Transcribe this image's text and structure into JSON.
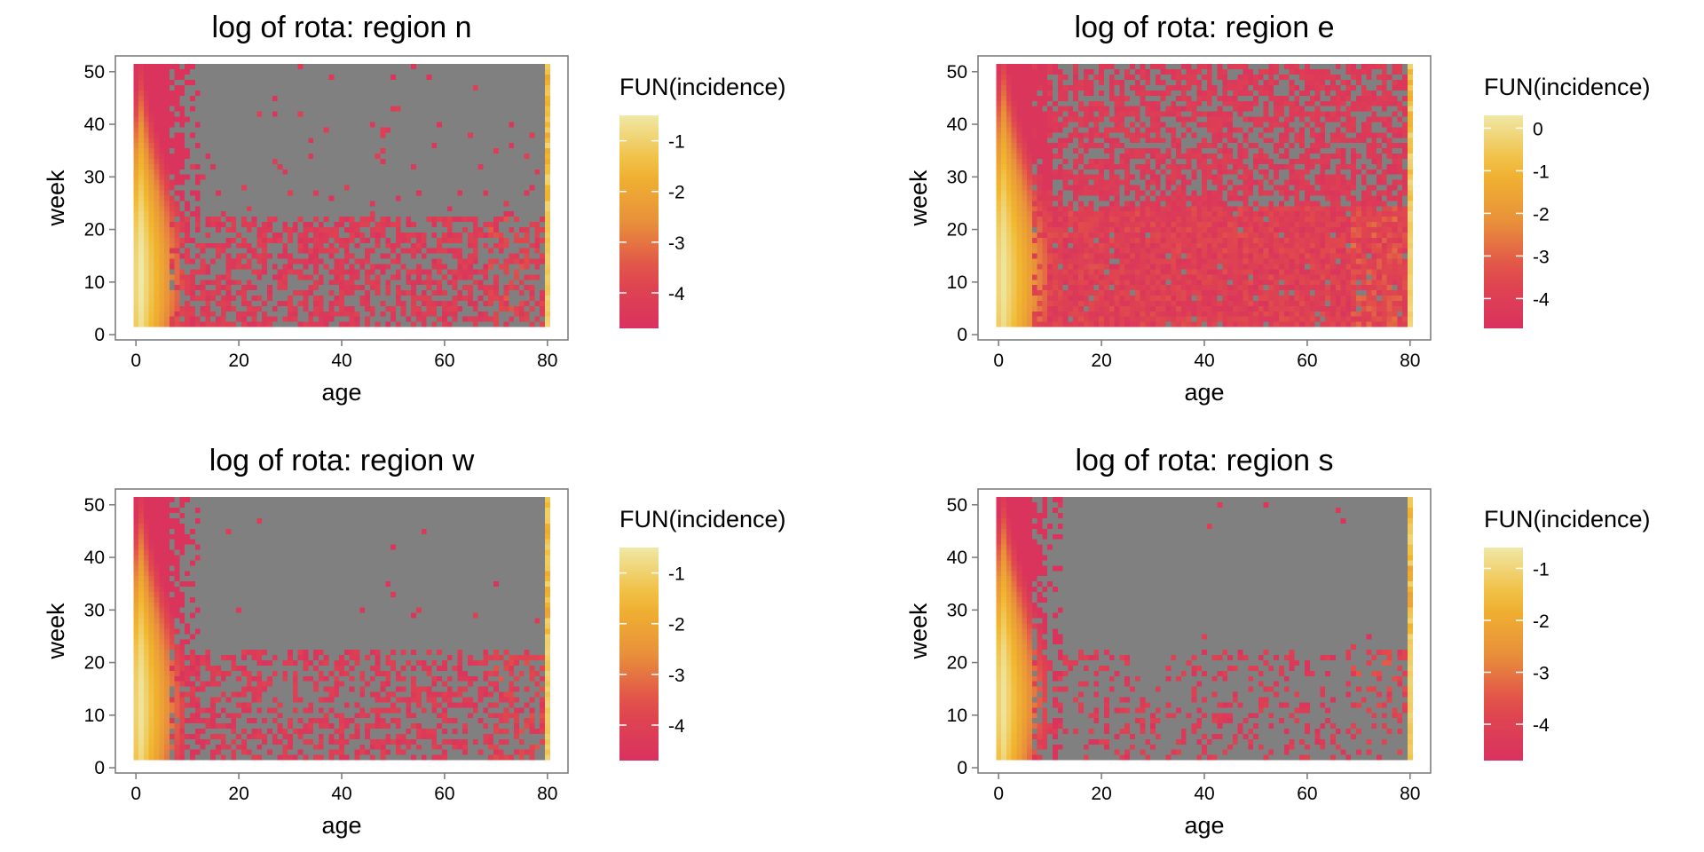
{
  "figure": {
    "background": "#ffffff",
    "na_color": "#808080",
    "palette": [
      "#d9325f",
      "#e0484d",
      "#e8903a",
      "#f1b72f",
      "#efe8a6"
    ]
  },
  "chart_data": [
    {
      "type": "heatmap",
      "title": "log of rota: region n",
      "xlabel": "age",
      "ylabel": "week",
      "xlim": [
        -4,
        84
      ],
      "ylim": [
        -1,
        53
      ],
      "xticks": [
        0,
        20,
        40,
        60,
        80
      ],
      "yticks": [
        0,
        10,
        20,
        30,
        40,
        50
      ],
      "x_range": [
        0,
        80
      ],
      "y_range": [
        2,
        51
      ],
      "legend": {
        "title": "FUN(incidence)",
        "position": "right",
        "range": [
          -4.7,
          -0.5
        ],
        "ticks": [
          -1,
          -2,
          -3,
          -4
        ]
      },
      "pattern": {
        "peak_age": 1,
        "peak_week": 11,
        "peak_value": -0.5,
        "baseline": -4.6,
        "band_weeks": [
          2,
          22
        ],
        "band_density": 0.55,
        "upper_density": 0.03,
        "right_edge_age": 80,
        "missing_label": "NA (grey)"
      }
    },
    {
      "type": "heatmap",
      "title": "log of rota: region e",
      "xlabel": "age",
      "ylabel": "week",
      "xlim": [
        -4,
        84
      ],
      "ylim": [
        -1,
        53
      ],
      "xticks": [
        0,
        20,
        40,
        60,
        80
      ],
      "yticks": [
        0,
        10,
        20,
        30,
        40,
        50
      ],
      "x_range": [
        0,
        80
      ],
      "y_range": [
        2,
        51
      ],
      "legend": {
        "title": "FUN(incidence)",
        "position": "right",
        "range": [
          -4.7,
          0.3
        ],
        "ticks": [
          0,
          -1,
          -2,
          -3,
          -4
        ]
      },
      "pattern": {
        "peak_age": 1,
        "peak_week": 11,
        "peak_value": 0.2,
        "baseline": -4.5,
        "band_weeks": [
          2,
          24
        ],
        "band_density": 0.95,
        "upper_density": 0.6,
        "right_edge_age": 80,
        "missing_label": "NA (grey)"
      }
    },
    {
      "type": "heatmap",
      "title": "log of rota: region w",
      "xlabel": "age",
      "ylabel": "week",
      "xlim": [
        -4,
        84
      ],
      "ylim": [
        -1,
        53
      ],
      "xticks": [
        0,
        20,
        40,
        60,
        80
      ],
      "yticks": [
        0,
        10,
        20,
        30,
        40,
        50
      ],
      "x_range": [
        0,
        80
      ],
      "y_range": [
        2,
        51
      ],
      "legend": {
        "title": "FUN(incidence)",
        "position": "right",
        "range": [
          -4.7,
          -0.5
        ],
        "ticks": [
          -1,
          -2,
          -3,
          -4
        ]
      },
      "pattern": {
        "peak_age": 1,
        "peak_week": 12,
        "peak_value": -0.6,
        "baseline": -4.6,
        "band_weeks": [
          2,
          22
        ],
        "band_density": 0.45,
        "upper_density": 0.01,
        "right_edge_age": 80,
        "missing_label": "NA (grey)"
      }
    },
    {
      "type": "heatmap",
      "title": "log of rota: region s",
      "xlabel": "age",
      "ylabel": "week",
      "xlim": [
        -4,
        84
      ],
      "ylim": [
        -1,
        53
      ],
      "xticks": [
        0,
        20,
        40,
        60,
        80
      ],
      "yticks": [
        0,
        10,
        20,
        30,
        40,
        50
      ],
      "x_range": [
        0,
        80
      ],
      "y_range": [
        2,
        51
      ],
      "legend": {
        "title": "FUN(incidence)",
        "position": "right",
        "range": [
          -4.7,
          -0.6
        ],
        "ticks": [
          -1,
          -2,
          -3,
          -4
        ]
      },
      "pattern": {
        "peak_age": 1,
        "peak_week": 13,
        "peak_value": -0.7,
        "baseline": -4.6,
        "band_weeks": [
          2,
          22
        ],
        "band_density": 0.25,
        "upper_density": 0.005,
        "right_edge_age": 80,
        "missing_label": "NA (grey)"
      }
    }
  ]
}
